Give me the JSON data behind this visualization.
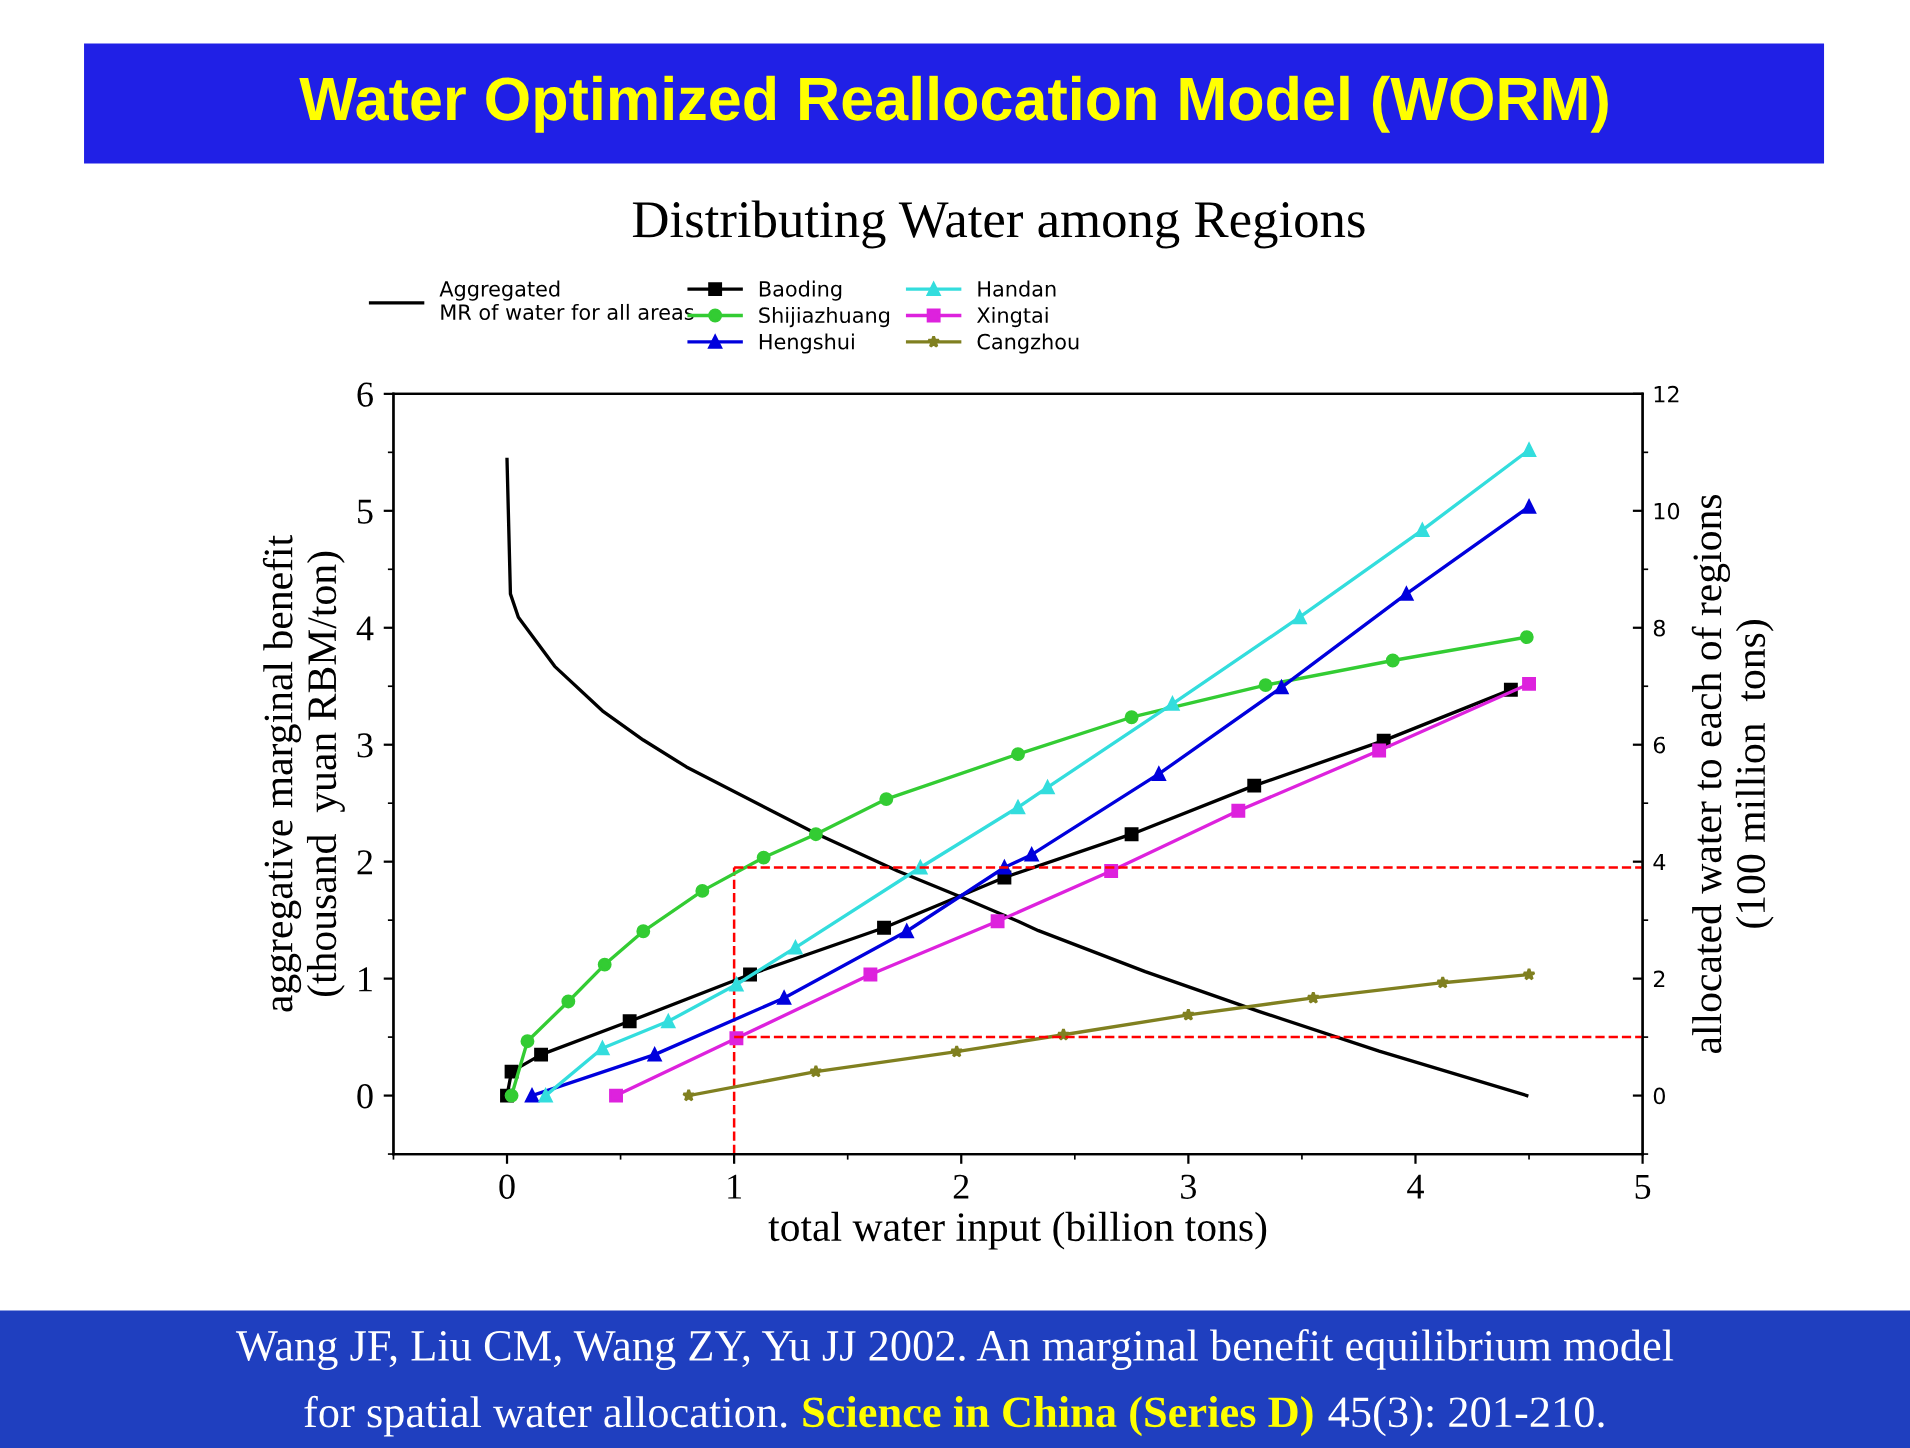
{
  "chart_data": {
    "type": "line",
    "title": "Water Optimized Reallocation Model (WORM)",
    "subtitle": "Distributing Water among Regions",
    "xlabel": "total water input (billion tons)",
    "ylabel": "aggregative marginal benefit\n(thousand  yuan RBM/ton)",
    "y2label": "allocated water to each of regions\n(100 million  tons)",
    "annotations": [
      "Wang JF, Liu CM, Wang ZY, Yu JJ 2002. An marginal benefit equilibrium model",
      "for spatial water allocation.",
      "Science in China (Series D)",
      "45(3): 201-210."
    ],
    "xlim": [
      -0.5,
      5
    ],
    "xticks": [
      0,
      1,
      2,
      3,
      4,
      5
    ],
    "ylim": [
      -0.5,
      6
    ],
    "yticks": [
      0,
      1,
      2,
      3,
      4,
      5,
      6
    ],
    "y2lim": [
      -1,
      12
    ],
    "y2ticks": [
      0,
      2,
      4,
      6,
      8,
      10,
      12
    ],
    "grid": false,
    "legend": "top left",
    "ref_lines": [
      {
        "axis": "x",
        "value": 1,
        "label": null,
        "color": "#ff0000",
        "line_style": "dashed"
      },
      {
        "axis": "y2",
        "value": 3.9,
        "label": null,
        "color": "#ff0000",
        "line_style": "dashed"
      },
      {
        "axis": "y2",
        "value": 1.0,
        "label": null,
        "color": "#ff0000",
        "line_style": "dashed"
      }
    ],
    "series": [
      {
        "name": "Aggregated\nMR of water for all areas",
        "color": "#000000",
        "marker": "none",
        "x": [
          0,
          0.015,
          0.05,
          0.21,
          0.42,
          0.6,
          0.79,
          1.16,
          1.36,
          1.72,
          2.01,
          2.25,
          2.34,
          2.81,
          3.31,
          3.84,
          4.49
        ],
        "values": [
          5.44,
          4.29,
          4.09,
          3.67,
          3.29,
          3.04,
          2.81,
          2.44,
          2.24,
          1.92,
          1.69,
          1.49,
          1.41,
          1.06,
          0.72,
          0.38,
          0
        ]
      },
      {
        "name": "Baoding",
        "color": "#000000",
        "marker": "square",
        "axis": "y2",
        "x": [
          0,
          0.02,
          0.15,
          0.54,
          1.07,
          1.66,
          2.19,
          2.75,
          3.29,
          3.86,
          4.42
        ],
        "values": [
          0,
          0.41,
          0.7,
          1.27,
          2.07,
          2.87,
          3.73,
          4.47,
          5.3,
          6.07,
          6.94
        ]
      },
      {
        "name": "Shijiazhuang",
        "color": "#33cc33",
        "marker": "circle",
        "axis": "y2",
        "x": [
          0.02,
          0.09,
          0.27,
          0.43,
          0.6,
          0.86,
          1.13,
          1.36,
          1.67,
          2.25,
          2.75,
          3.34,
          3.9,
          4.49
        ],
        "values": [
          0,
          0.93,
          1.61,
          2.24,
          2.81,
          3.5,
          4.07,
          4.47,
          5.07,
          5.84,
          6.47,
          7.02,
          7.44,
          7.84
        ]
      },
      {
        "name": "Hengshui",
        "color": "#0000dd",
        "marker": "triangle",
        "axis": "y2",
        "x": [
          0.11,
          0.65,
          1.22,
          1.76,
          2.19,
          2.31,
          2.87,
          3.41,
          3.96,
          4.5
        ],
        "values": [
          0,
          0.7,
          1.67,
          2.81,
          3.9,
          4.12,
          5.5,
          6.98,
          8.58,
          10.07
        ]
      },
      {
        "name": "Handan",
        "color": "#33dddd",
        "marker": "triangle",
        "axis": "y2",
        "x": [
          0.17,
          0.42,
          0.71,
          1.01,
          1.27,
          1.82,
          2.25,
          2.38,
          2.93,
          3.49,
          4.03,
          4.5
        ],
        "values": [
          0,
          0.81,
          1.27,
          1.9,
          2.53,
          3.9,
          4.93,
          5.27,
          6.7,
          8.18,
          9.67,
          11.04
        ]
      },
      {
        "name": "Xingtai",
        "color": "#dd22dd",
        "marker": "square",
        "axis": "y2",
        "x": [
          0.48,
          1.01,
          1.6,
          2.16,
          2.66,
          3.22,
          3.84,
          4.5
        ],
        "values": [
          0,
          0.98,
          2.07,
          2.98,
          3.84,
          4.87,
          5.9,
          7.04
        ]
      },
      {
        "name": "Cangzhou",
        "color": "#808020",
        "marker": "star",
        "axis": "y2",
        "x": [
          0.8,
          1.36,
          1.98,
          2.45,
          3.0,
          3.55,
          4.12,
          4.5
        ],
        "values": [
          0,
          0.41,
          0.75,
          1.04,
          1.38,
          1.67,
          1.93,
          2.07
        ]
      }
    ]
  }
}
